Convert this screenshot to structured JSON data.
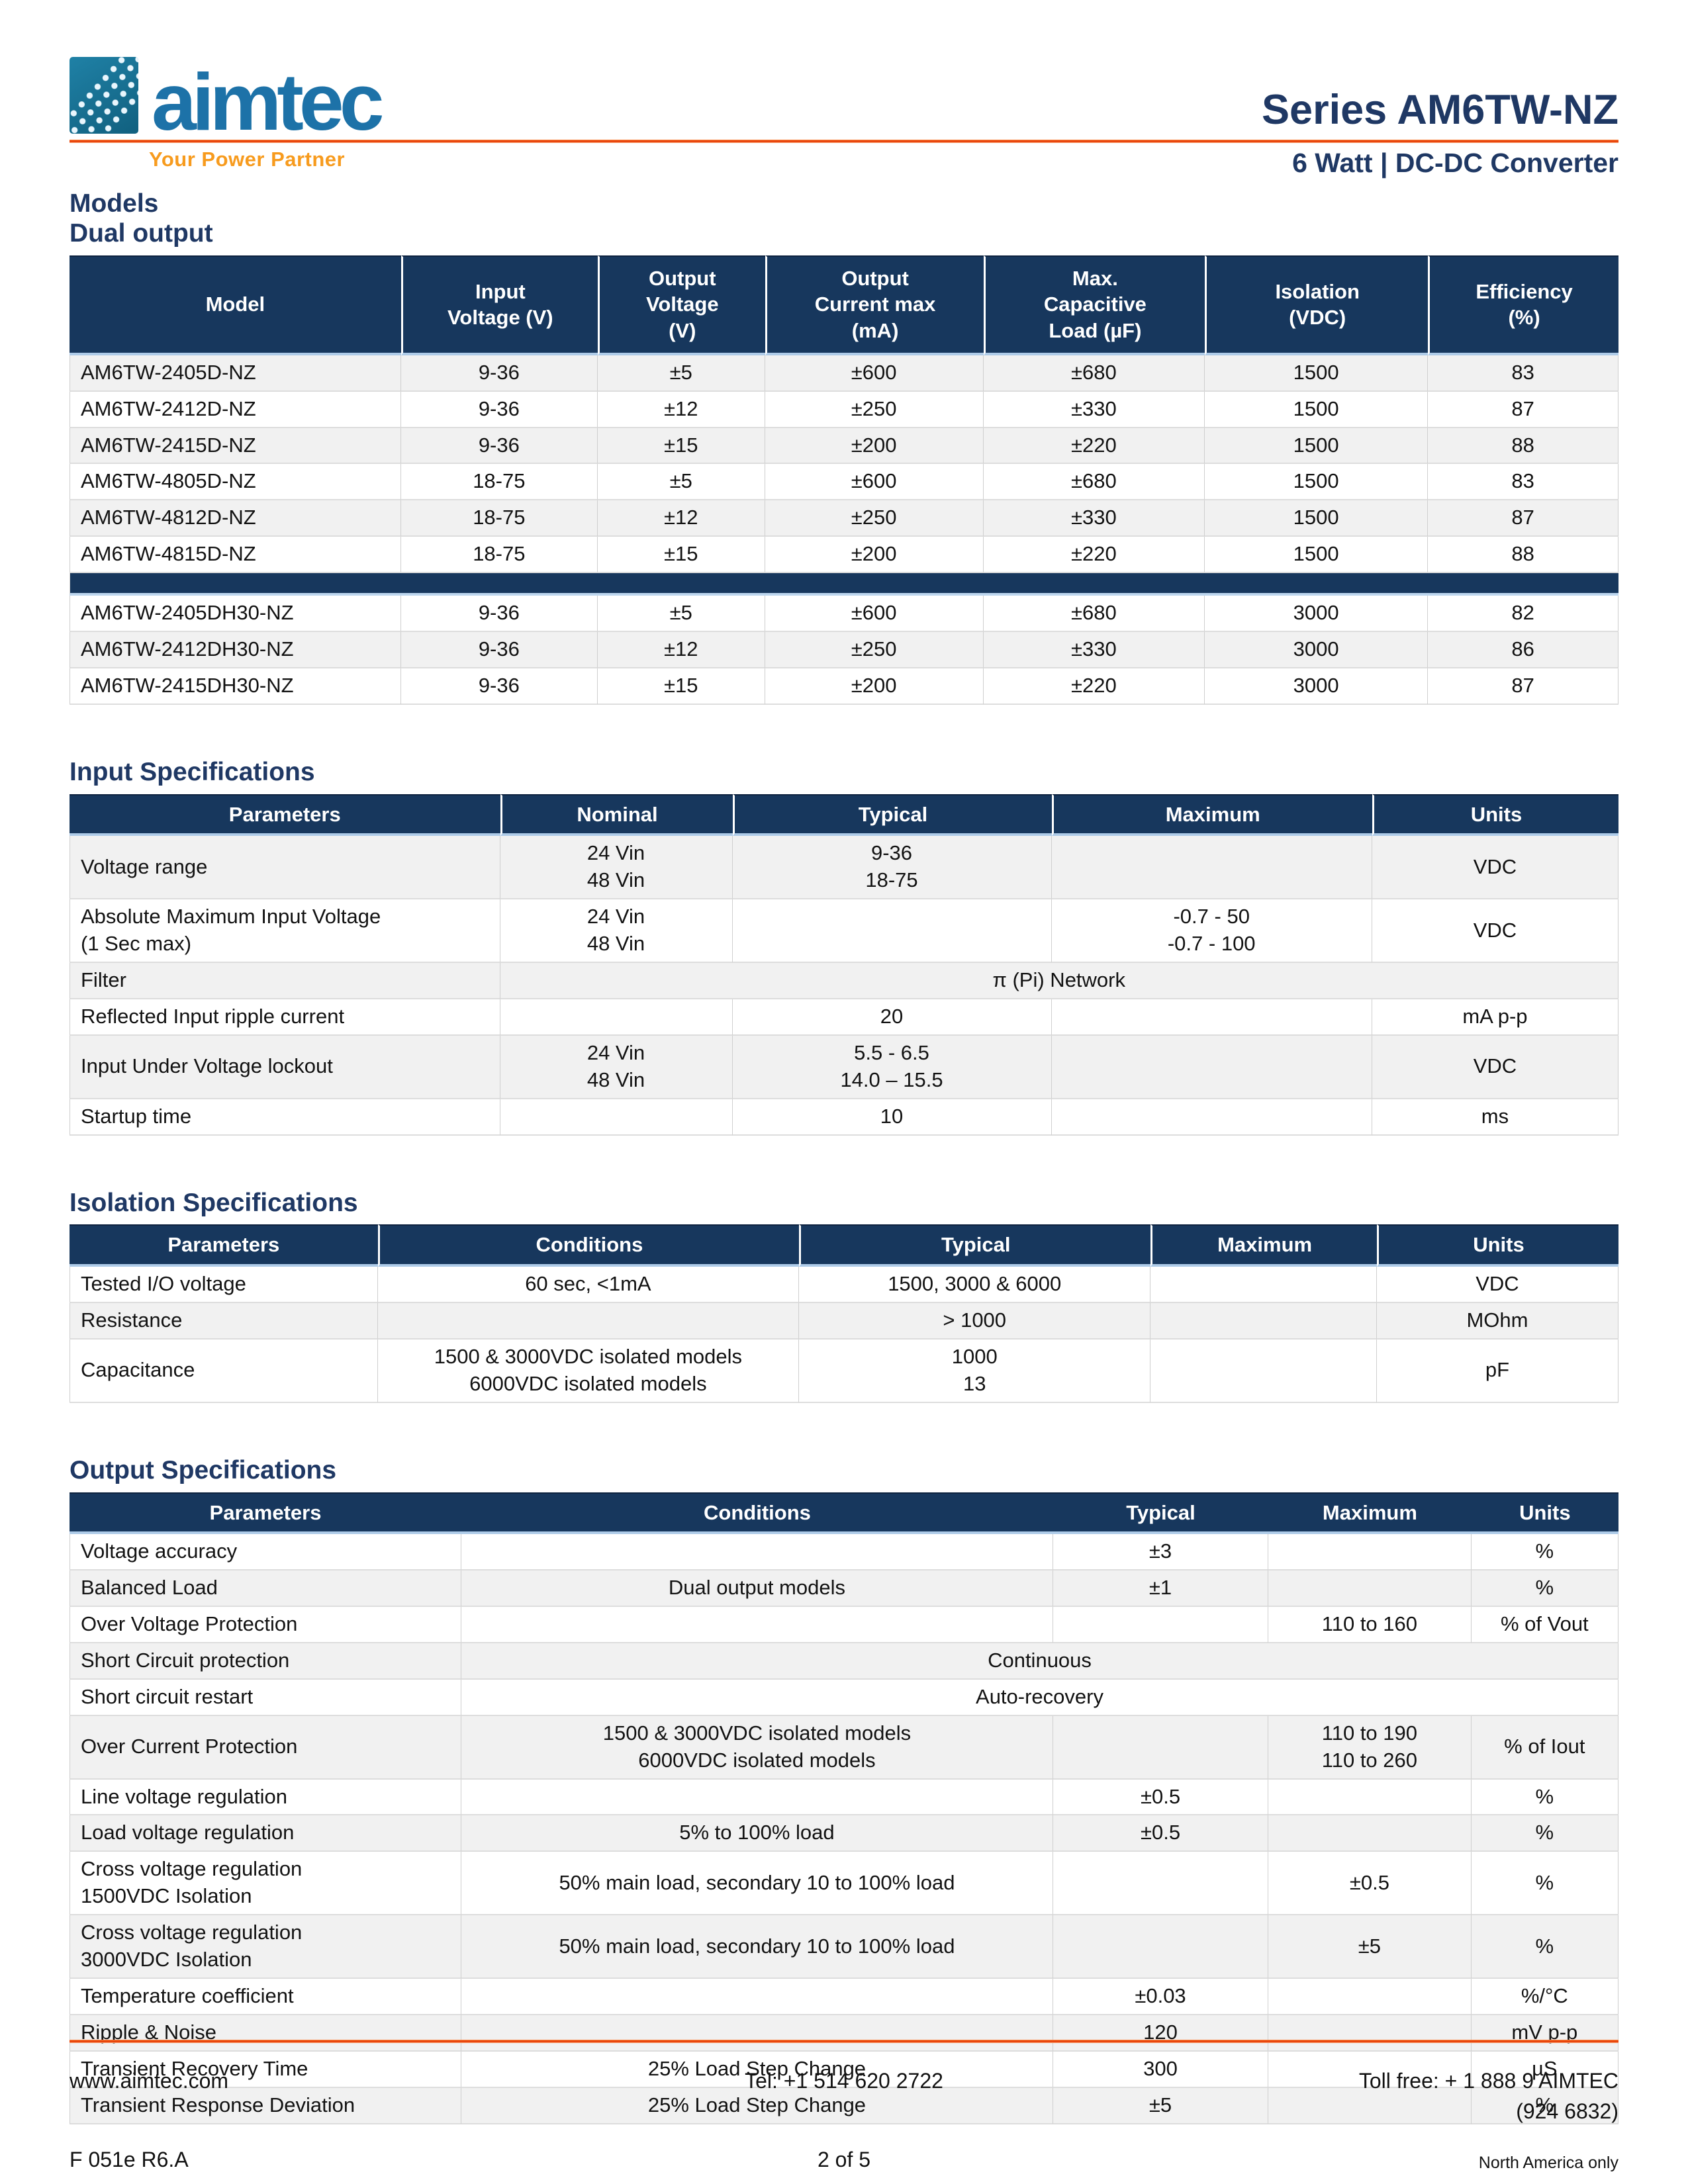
{
  "colors": {
    "navy_header": "#17375D",
    "heading_blue": "#1F3864",
    "rule_orange": "#E8430A",
    "tagline_orange": "#F79B1E",
    "row_shade": "#F1F1F1",
    "logo_blue": "#1D72A8"
  },
  "header": {
    "logo_text": "aimtec",
    "tagline": "Your Power Partner",
    "series_title": "Series AM6TW-NZ",
    "subtitle": "6 Watt | DC-DC Converter"
  },
  "sections": {
    "models": {
      "title": "Models",
      "subtitle": "Dual output",
      "table": {
        "columns": [
          {
            "lines": [
              "Model"
            ],
            "w": "21.4%"
          },
          {
            "lines": [
              "Input",
              "Voltage (V)"
            ],
            "w": "12.7%"
          },
          {
            "lines": [
              "Output",
              "Voltage",
              "(V)"
            ],
            "w": "10.8%"
          },
          {
            "lines": [
              "Output",
              "Current max",
              "(mA)"
            ],
            "w": "14.1%"
          },
          {
            "lines": [
              "Max.",
              "Capacitive",
              "Load (µF)"
            ],
            "w": "14.3%"
          },
          {
            "lines": [
              "Isolation",
              "(VDC)"
            ],
            "w": "14.4%"
          },
          {
            "lines": [
              "Efficiency",
              "(%)"
            ],
            "w": "12.3%"
          }
        ],
        "group1_rows": [
          [
            "AM6TW-2405D-NZ",
            "9-36",
            "±5",
            "±600",
            "±680",
            "1500",
            "83"
          ],
          [
            "AM6TW-2412D-NZ",
            "9-36",
            "±12",
            "±250",
            "±330",
            "1500",
            "87"
          ],
          [
            "AM6TW-2415D-NZ",
            "9-36",
            "±15",
            "±200",
            "±220",
            "1500",
            "88"
          ],
          [
            "AM6TW-4805D-NZ",
            "18-75",
            "±5",
            "±600",
            "±680",
            "1500",
            "83"
          ],
          [
            "AM6TW-4812D-NZ",
            "18-75",
            "±12",
            "±250",
            "±330",
            "1500",
            "87"
          ],
          [
            "AM6TW-4815D-NZ",
            "18-75",
            "±15",
            "±200",
            "±220",
            "1500",
            "88"
          ]
        ],
        "group2_rows": [
          [
            "AM6TW-2405DH30-NZ",
            "9-36",
            "±5",
            "±600",
            "±680",
            "3000",
            "82"
          ],
          [
            "AM6TW-2412DH30-NZ",
            "9-36",
            "±12",
            "±250",
            "±330",
            "3000",
            "86"
          ],
          [
            "AM6TW-2415DH30-NZ",
            "9-36",
            "±15",
            "±200",
            "±220",
            "3000",
            "87"
          ]
        ]
      }
    },
    "input": {
      "title": "Input Specifications",
      "table": {
        "columns": [
          {
            "lines": [
              "Parameters"
            ],
            "w": "27.8%"
          },
          {
            "lines": [
              "Nominal"
            ],
            "w": "15.0%"
          },
          {
            "lines": [
              "Typical"
            ],
            "w": "20.6%"
          },
          {
            "lines": [
              "Maximum"
            ],
            "w": "20.7%"
          },
          {
            "lines": [
              "Units"
            ],
            "w": "15.9%"
          }
        ],
        "rows": [
          [
            {
              "t": "Voltage range"
            },
            {
              "lines": [
                "24 Vin",
                "48 Vin"
              ]
            },
            {
              "lines": [
                "9-36",
                "18-75"
              ]
            },
            {
              "t": ""
            },
            {
              "t": "VDC"
            }
          ],
          [
            {
              "lines": [
                "Absolute Maximum Input Voltage",
                "(1 Sec max)"
              ]
            },
            {
              "lines": [
                "24 Vin",
                "48 Vin"
              ]
            },
            {
              "t": ""
            },
            {
              "lines": [
                "-0.7 - 50",
                "-0.7 - 100"
              ]
            },
            {
              "t": "VDC"
            }
          ],
          [
            {
              "t": "Filter"
            },
            {
              "t": "π (Pi) Network",
              "span": 4
            }
          ],
          [
            {
              "t": "Reflected Input ripple current"
            },
            {
              "t": ""
            },
            {
              "t": "20"
            },
            {
              "t": ""
            },
            {
              "t": "mA p-p"
            }
          ],
          [
            {
              "t": "Input Under Voltage lockout"
            },
            {
              "lines": [
                "24 Vin",
                "48 Vin"
              ]
            },
            {
              "lines": [
                "5.5 - 6.5",
                "14.0 – 15.5"
              ]
            },
            {
              "t": ""
            },
            {
              "t": "VDC"
            }
          ],
          [
            {
              "t": "Startup time"
            },
            {
              "t": ""
            },
            {
              "t": "10"
            },
            {
              "t": ""
            },
            {
              "t": "ms"
            }
          ]
        ]
      }
    },
    "isolation": {
      "title": "Isolation Specifications",
      "table": {
        "columns": [
          {
            "lines": [
              "Parameters"
            ],
            "w": "19.9%"
          },
          {
            "lines": [
              "Conditions"
            ],
            "w": "27.2%"
          },
          {
            "lines": [
              "Typical"
            ],
            "w": "22.7%"
          },
          {
            "lines": [
              "Maximum"
            ],
            "w": "14.6%"
          },
          {
            "lines": [
              "Units"
            ],
            "w": "15.6%"
          }
        ],
        "rows": [
          [
            {
              "t": "Tested I/O voltage"
            },
            {
              "t": "60 sec, <1mA"
            },
            {
              "t": "1500, 3000 & 6000"
            },
            {
              "t": ""
            },
            {
              "t": "VDC"
            }
          ],
          [
            {
              "t": "Resistance"
            },
            {
              "t": ""
            },
            {
              "t": "> 1000"
            },
            {
              "t": ""
            },
            {
              "t": "MOhm"
            }
          ],
          [
            {
              "t": "Capacitance"
            },
            {
              "lines": [
                "1500 & 3000VDC isolated models",
                "6000VDC isolated models"
              ]
            },
            {
              "lines": [
                "1000",
                "13"
              ]
            },
            {
              "t": ""
            },
            {
              "t": "pF"
            }
          ]
        ]
      }
    },
    "output": {
      "title": "Output Specifications",
      "table": {
        "columns": [
          {
            "lines": [
              "Parameters"
            ],
            "w": "25.3%"
          },
          {
            "lines": [
              "Conditions"
            ],
            "w": "38.2%"
          },
          {
            "lines": [
              "Typical"
            ],
            "w": "13.9%"
          },
          {
            "lines": [
              "Maximum"
            ],
            "w": "13.1%"
          },
          {
            "lines": [
              "Units"
            ],
            "w": "9.5%"
          }
        ],
        "rows": [
          [
            {
              "t": "Voltage accuracy"
            },
            {
              "t": ""
            },
            {
              "t": "±3"
            },
            {
              "t": ""
            },
            {
              "t": "%"
            }
          ],
          [
            {
              "t": "Balanced Load"
            },
            {
              "t": "Dual output models"
            },
            {
              "t": "±1"
            },
            {
              "t": ""
            },
            {
              "t": "%"
            }
          ],
          [
            {
              "t": "Over Voltage Protection"
            },
            {
              "t": ""
            },
            {
              "t": ""
            },
            {
              "t": "110 to 160"
            },
            {
              "t": "% of Vout"
            }
          ],
          [
            {
              "t": "Short Circuit protection"
            },
            {
              "t": "Continuous",
              "span": 4
            }
          ],
          [
            {
              "t": "Short circuit restart"
            },
            {
              "t": "Auto-recovery",
              "span": 4
            }
          ],
          [
            {
              "t": "Over Current Protection"
            },
            {
              "lines": [
                "1500 & 3000VDC isolated models",
                "6000VDC isolated models"
              ]
            },
            {
              "t": ""
            },
            {
              "lines": [
                "110 to 190",
                "110 to 260"
              ]
            },
            {
              "t": "% of Iout"
            }
          ],
          [
            {
              "t": "Line voltage regulation"
            },
            {
              "t": ""
            },
            {
              "t": "±0.5"
            },
            {
              "t": ""
            },
            {
              "t": "%"
            }
          ],
          [
            {
              "t": "Load voltage regulation"
            },
            {
              "t": "5% to 100% load"
            },
            {
              "t": "±0.5"
            },
            {
              "t": ""
            },
            {
              "t": "%"
            }
          ],
          [
            {
              "lines": [
                "Cross voltage regulation",
                "1500VDC Isolation"
              ]
            },
            {
              "t": "50% main load, secondary 10 to 100% load"
            },
            {
              "t": ""
            },
            {
              "t": "±0.5"
            },
            {
              "t": "%"
            }
          ],
          [
            {
              "lines": [
                "Cross voltage regulation",
                "3000VDC Isolation"
              ]
            },
            {
              "t": "50% main load, secondary 10 to 100% load"
            },
            {
              "t": ""
            },
            {
              "t": "±5"
            },
            {
              "t": "%"
            }
          ],
          [
            {
              "t": "Temperature coefficient"
            },
            {
              "t": ""
            },
            {
              "t": "±0.03"
            },
            {
              "t": ""
            },
            {
              "t": "%/°C"
            }
          ],
          [
            {
              "t": "Ripple & Noise"
            },
            {
              "t": ""
            },
            {
              "t": "120"
            },
            {
              "t": ""
            },
            {
              "t": "mV p-p"
            }
          ],
          [
            {
              "t": "Transient Recovery Time"
            },
            {
              "t": "25% Load Step Change"
            },
            {
              "t": "300"
            },
            {
              "t": ""
            },
            {
              "t": "µS"
            }
          ],
          [
            {
              "t": "Transient Response Deviation"
            },
            {
              "t": "25% Load Step Change"
            },
            {
              "t": "±5"
            },
            {
              "t": ""
            },
            {
              "t": "%"
            }
          ]
        ]
      }
    }
  },
  "footer": {
    "website": "www.aimtec.com",
    "tel": "Tel: +1 514 620 2722",
    "toll_free": "Toll free: + 1 888 9 AIMTEC",
    "toll_free2": "(924 6832)",
    "doc_ref": "F 051e R6.A",
    "page": "2 of 5",
    "region": "North America only"
  }
}
